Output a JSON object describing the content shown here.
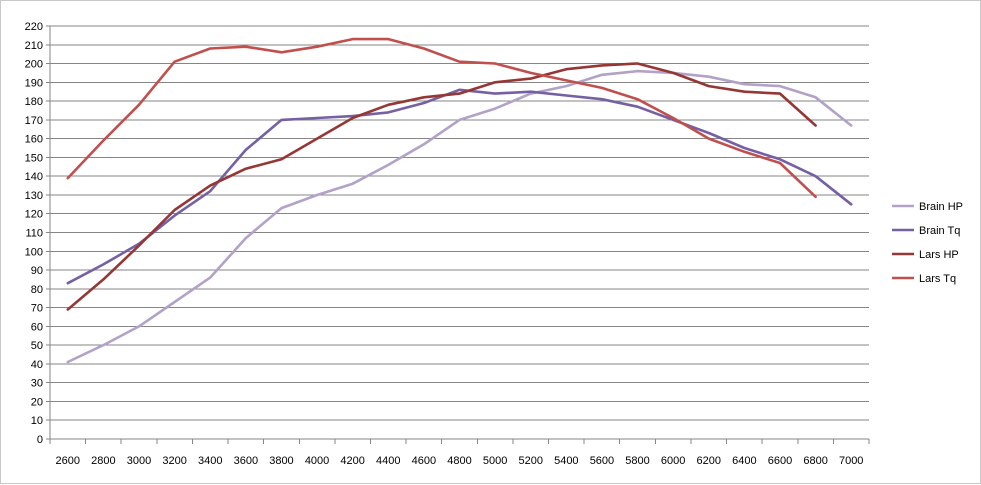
{
  "chart_data": {
    "type": "line",
    "x": [
      2600,
      2800,
      3000,
      3200,
      3400,
      3600,
      3800,
      4000,
      4200,
      4400,
      4600,
      4800,
      5000,
      5200,
      5400,
      5600,
      5800,
      6000,
      6200,
      6400,
      6600,
      6800,
      7000
    ],
    "series": [
      {
        "name": "Brain HP",
        "color": "#b3a2c7",
        "values": [
          41,
          50,
          60,
          73,
          86,
          107,
          123,
          130,
          136,
          146,
          157,
          170,
          176,
          184,
          188,
          194,
          196,
          195,
          193,
          189,
          188,
          182,
          167
        ]
      },
      {
        "name": "Brain Tq",
        "color": "#7560a3",
        "values": [
          83,
          93,
          104,
          119,
          132,
          154,
          170,
          171,
          172,
          174,
          179,
          186,
          184,
          185,
          183,
          181,
          177,
          170,
          163,
          155,
          149,
          140,
          125
        ]
      },
      {
        "name": "Lars HP",
        "color": "#953735",
        "values": [
          69,
          85,
          103,
          122,
          135,
          144,
          149,
          160,
          171,
          178,
          182,
          184,
          190,
          192,
          197,
          199,
          200,
          195,
          188,
          185,
          184,
          167,
          null
        ]
      },
      {
        "name": "Lars Tq",
        "color": "#c0504d",
        "values": [
          139,
          159,
          178,
          201,
          208,
          209,
          206,
          209,
          213,
          213,
          208,
          201,
          200,
          195,
          191,
          187,
          181,
          171,
          160,
          153,
          147,
          129,
          null
        ]
      }
    ],
    "ylim": [
      0,
      220
    ],
    "ytick_step": 10,
    "grid": true,
    "legend_position": "right"
  }
}
